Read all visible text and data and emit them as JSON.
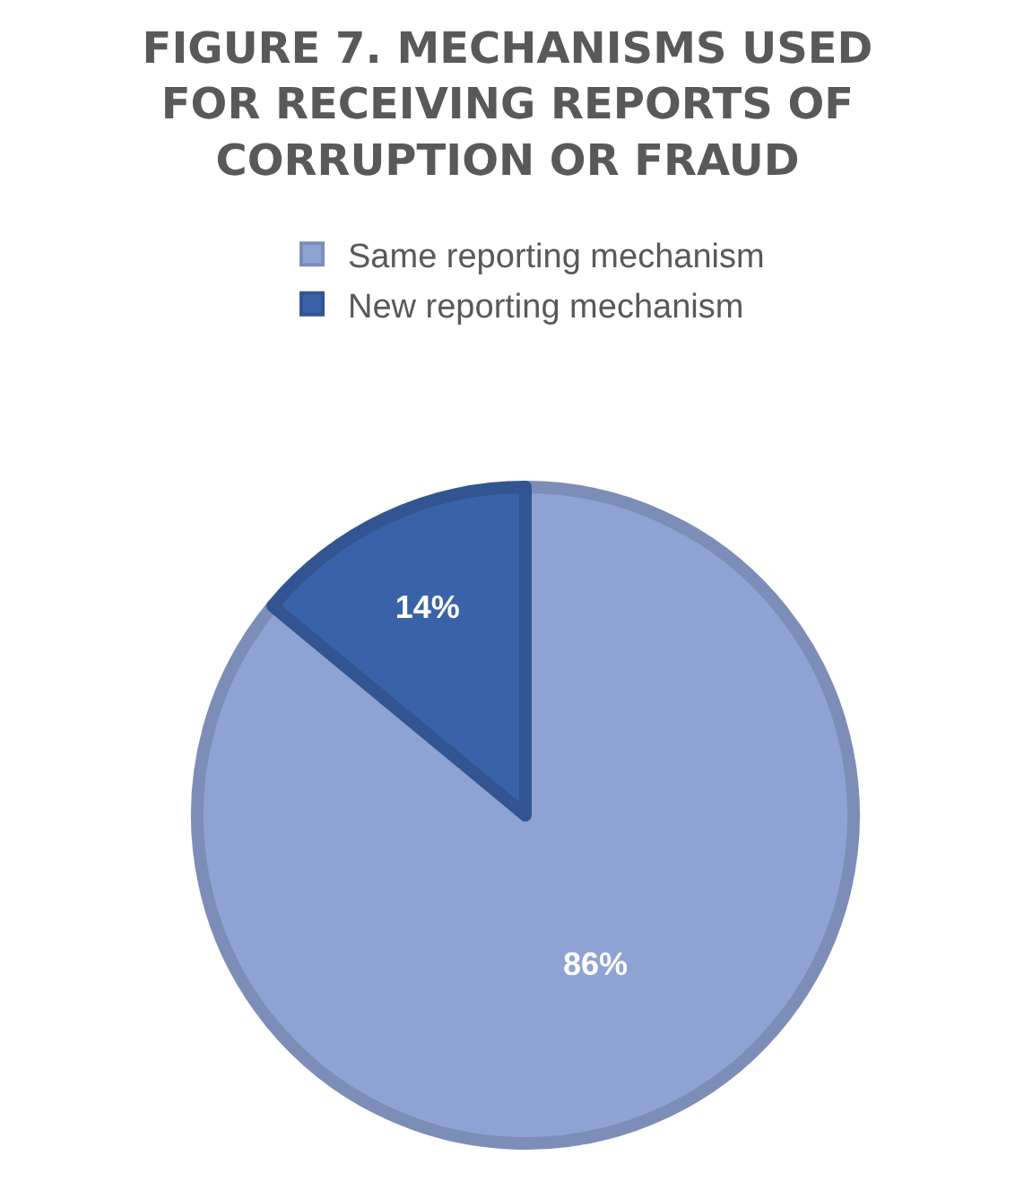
{
  "chart_data": {
    "type": "pie",
    "title": "FIGURE 7. MECHANISMS USED FOR RECEIVING REPORTS OF CORRUPTION OR FRAUD",
    "categories": [
      "Same reporting mechanism",
      "New reporting mechanism"
    ],
    "values": [
      86,
      14
    ],
    "colors": [
      "#8ea2d4",
      "#3a62a8"
    ],
    "value_labels": [
      "86%",
      "14%"
    ],
    "legend": "top"
  }
}
